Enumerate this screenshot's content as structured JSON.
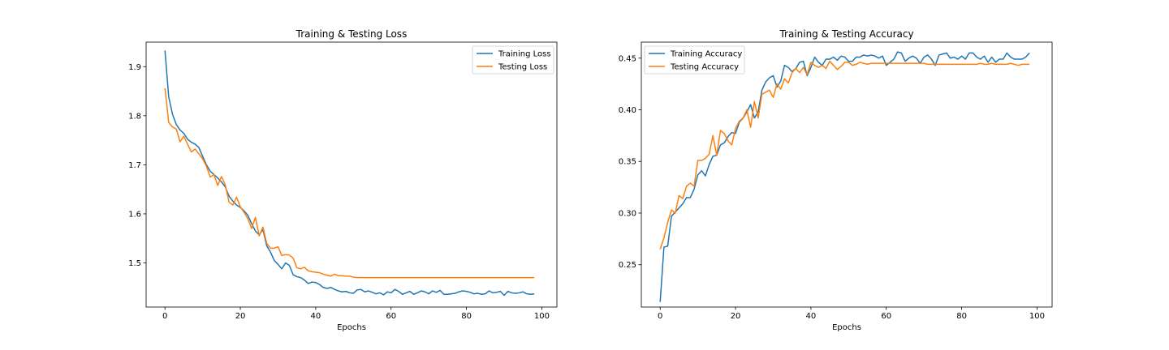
{
  "chart_data": [
    {
      "type": "line",
      "title": "Training & Testing Loss",
      "xlabel": "Epochs",
      "ylabel": "",
      "xlim": [
        -5,
        104
      ],
      "ylim": [
        1.41,
        1.95
      ],
      "xticks": [
        "0",
        "20",
        "40",
        "60",
        "80",
        "100"
      ],
      "yticks": [
        "1.5",
        "1.6",
        "1.7",
        "1.8",
        "1.9"
      ],
      "legend": "top-right",
      "grid": false,
      "series": [
        {
          "name": "Training Loss",
          "color": "#1f77b4",
          "values": [
            1.933,
            1.838,
            1.803,
            1.782,
            1.771,
            1.764,
            1.752,
            1.746,
            1.742,
            1.735,
            1.717,
            1.7,
            1.687,
            1.68,
            1.673,
            1.665,
            1.655,
            1.636,
            1.626,
            1.618,
            1.613,
            1.606,
            1.597,
            1.58,
            1.565,
            1.557,
            1.568,
            1.535,
            1.522,
            1.505,
            1.497,
            1.488,
            1.5,
            1.495,
            1.476,
            1.472,
            1.47,
            1.465,
            1.458,
            1.461,
            1.46,
            1.456,
            1.45,
            1.448,
            1.45,
            1.446,
            1.443,
            1.441,
            1.442,
            1.439,
            1.438,
            1.445,
            1.446,
            1.441,
            1.443,
            1.44,
            1.437,
            1.439,
            1.435,
            1.441,
            1.439,
            1.446,
            1.442,
            1.436,
            1.439,
            1.442,
            1.436,
            1.439,
            1.443,
            1.441,
            1.437,
            1.443,
            1.44,
            1.444,
            1.436,
            1.436,
            1.437,
            1.438,
            1.441,
            1.443,
            1.442,
            1.44,
            1.437,
            1.438,
            1.436,
            1.437,
            1.443,
            1.439,
            1.44,
            1.442,
            1.434,
            1.442,
            1.439,
            1.438,
            1.439,
            1.441,
            1.437,
            1.436,
            1.437
          ]
        },
        {
          "name": "Testing Loss",
          "color": "#ff7f0e",
          "values": [
            1.856,
            1.786,
            1.777,
            1.773,
            1.747,
            1.758,
            1.742,
            1.726,
            1.732,
            1.722,
            1.712,
            1.697,
            1.675,
            1.68,
            1.658,
            1.676,
            1.659,
            1.624,
            1.618,
            1.634,
            1.614,
            1.603,
            1.59,
            1.57,
            1.593,
            1.555,
            1.573,
            1.54,
            1.53,
            1.53,
            1.533,
            1.515,
            1.517,
            1.516,
            1.51,
            1.49,
            1.488,
            1.491,
            1.484,
            1.482,
            1.481,
            1.48,
            1.477,
            1.475,
            1.473,
            1.477,
            1.474,
            1.474,
            1.473,
            1.473,
            1.471,
            1.47,
            1.47,
            1.47,
            1.47,
            1.47,
            1.47,
            1.47,
            1.47,
            1.47,
            1.47,
            1.47,
            1.47,
            1.47,
            1.47,
            1.47,
            1.47,
            1.47,
            1.47,
            1.47,
            1.47,
            1.47,
            1.47,
            1.47,
            1.47,
            1.47,
            1.47,
            1.47,
            1.47,
            1.47,
            1.47,
            1.47,
            1.47,
            1.47,
            1.47,
            1.47,
            1.47,
            1.47,
            1.47,
            1.47,
            1.47,
            1.47,
            1.47,
            1.47,
            1.47,
            1.47,
            1.47,
            1.47,
            1.47
          ]
        }
      ]
    },
    {
      "type": "line",
      "title": "Training & Testing Accuracy",
      "xlabel": "Epochs",
      "ylabel": "",
      "xlim": [
        -5,
        104
      ],
      "ylim": [
        0.209,
        0.4655
      ],
      "xticks": [
        "0",
        "20",
        "40",
        "60",
        "80",
        "100"
      ],
      "yticks": [
        "0.25",
        "0.30",
        "0.35",
        "0.40",
        "0.45"
      ],
      "legend": "top-left",
      "grid": false,
      "series": [
        {
          "name": "Training Accuracy",
          "color": "#1f77b4",
          "values": [
            0.214,
            0.267,
            0.268,
            0.297,
            0.301,
            0.305,
            0.309,
            0.315,
            0.315,
            0.323,
            0.337,
            0.341,
            0.336,
            0.347,
            0.355,
            0.356,
            0.366,
            0.368,
            0.374,
            0.378,
            0.377,
            0.388,
            0.392,
            0.398,
            0.405,
            0.392,
            0.398,
            0.419,
            0.427,
            0.431,
            0.433,
            0.422,
            0.428,
            0.443,
            0.441,
            0.437,
            0.44,
            0.446,
            0.447,
            0.433,
            0.441,
            0.451,
            0.446,
            0.443,
            0.449,
            0.449,
            0.451,
            0.448,
            0.452,
            0.451,
            0.447,
            0.447,
            0.451,
            0.451,
            0.453,
            0.452,
            0.453,
            0.452,
            0.45,
            0.452,
            0.443,
            0.446,
            0.449,
            0.456,
            0.455,
            0.447,
            0.45,
            0.452,
            0.45,
            0.445,
            0.451,
            0.453,
            0.449,
            0.443,
            0.453,
            0.454,
            0.455,
            0.45,
            0.451,
            0.449,
            0.452,
            0.449,
            0.455,
            0.455,
            0.451,
            0.449,
            0.452,
            0.446,
            0.451,
            0.446,
            0.449,
            0.449,
            0.455,
            0.451,
            0.449,
            0.449,
            0.449,
            0.451,
            0.455
          ]
        },
        {
          "name": "Testing Accuracy",
          "color": "#ff7f0e",
          "values": [
            0.265,
            0.276,
            0.291,
            0.303,
            0.3,
            0.317,
            0.314,
            0.326,
            0.329,
            0.326,
            0.351,
            0.351,
            0.353,
            0.357,
            0.375,
            0.356,
            0.38,
            0.377,
            0.37,
            0.366,
            0.382,
            0.389,
            0.392,
            0.4,
            0.383,
            0.408,
            0.392,
            0.415,
            0.417,
            0.419,
            0.412,
            0.425,
            0.42,
            0.43,
            0.426,
            0.436,
            0.44,
            0.436,
            0.441,
            0.434,
            0.446,
            0.443,
            0.441,
            0.443,
            0.44,
            0.447,
            0.443,
            0.439,
            0.442,
            0.446,
            0.446,
            0.443,
            0.444,
            0.446,
            0.445,
            0.444,
            0.445,
            0.445,
            0.445,
            0.445,
            0.445,
            0.445,
            0.445,
            0.445,
            0.445,
            0.445,
            0.445,
            0.445,
            0.445,
            0.445,
            0.445,
            0.444,
            0.444,
            0.444,
            0.444,
            0.444,
            0.444,
            0.444,
            0.444,
            0.444,
            0.444,
            0.444,
            0.444,
            0.444,
            0.444,
            0.445,
            0.444,
            0.444,
            0.445,
            0.444,
            0.444,
            0.444,
            0.444,
            0.445,
            0.444,
            0.443,
            0.444,
            0.444,
            0.444
          ]
        }
      ]
    }
  ]
}
